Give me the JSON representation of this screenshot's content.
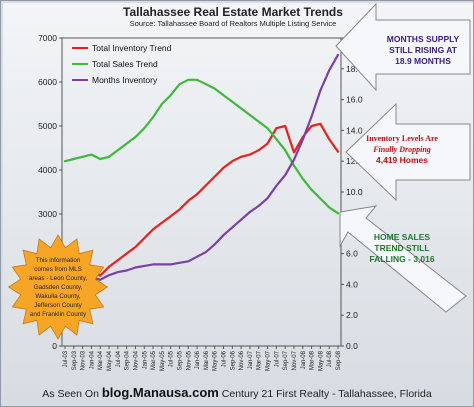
{
  "chart_data": {
    "type": "line",
    "title": "Tallahassee Real Estate Market Trends",
    "subtitle": "Source: Tallahassee Board of Realtors Multiple Listing Service",
    "x": [
      "Jul-03",
      "Sep-03",
      "Nov-03",
      "Jan-04",
      "Mar-04",
      "May-04",
      "Jul-04",
      "Sep-04",
      "Nov-04",
      "Jan-05",
      "Mar-05",
      "May-05",
      "Jul-05",
      "Sep-05",
      "Nov-05",
      "Jan-06",
      "Mar-06",
      "May-06",
      "Jul-06",
      "Sep-06",
      "Nov-06",
      "Jan-07",
      "Mar-07",
      "May-07",
      "Jul-07",
      "Sep-07",
      "Nov-07",
      "Jan-08",
      "Mar-08",
      "May-08",
      "Jul-08",
      "Sep-08"
    ],
    "y_left_lim": [
      0,
      7000
    ],
    "y_right_lim": [
      0.0,
      20.0
    ],
    "y_left_ticks": [
      0,
      1000,
      2000,
      3000,
      4000,
      5000,
      6000,
      7000
    ],
    "y_right_ticks": [
      "0.0",
      "2.0",
      "4.0",
      "6.0",
      "8.0",
      "10.0",
      "12.0",
      "14.0",
      "16.0",
      "18.0",
      "20.0"
    ],
    "series": [
      {
        "name": "Total Inventory Trend",
        "color": "#e8201c",
        "axis": "left",
        "values": [
          1300,
          1450,
          1550,
          1700,
          1600,
          1800,
          1950,
          2100,
          2250,
          2450,
          2650,
          2800,
          2950,
          3100,
          3300,
          3450,
          3650,
          3850,
          4050,
          4200,
          4300,
          4350,
          4450,
          4600,
          4950,
          5000,
          4400,
          4750,
          5000,
          5050,
          4700,
          4419
        ]
      },
      {
        "name": "Total Sales Trend",
        "color": "#3dba3a",
        "axis": "left",
        "values": [
          4200,
          4250,
          4300,
          4350,
          4250,
          4300,
          4450,
          4600,
          4750,
          4950,
          5200,
          5500,
          5700,
          5950,
          6050,
          6050,
          5950,
          5850,
          5700,
          5550,
          5400,
          5250,
          5100,
          4950,
          4700,
          4450,
          4100,
          3800,
          3550,
          3350,
          3150,
          3016
        ]
      },
      {
        "name": "Months Inventory",
        "color": "#7b3fa8",
        "axis": "right",
        "values": [
          4.2,
          4.3,
          4.4,
          4.5,
          4.3,
          4.6,
          4.8,
          4.9,
          5.1,
          5.2,
          5.3,
          5.3,
          5.3,
          5.4,
          5.5,
          5.8,
          6.1,
          6.6,
          7.2,
          7.7,
          8.2,
          8.7,
          9.1,
          9.6,
          10.4,
          11.1,
          12.1,
          13.4,
          14.9,
          16.6,
          17.9,
          18.9
        ]
      }
    ],
    "grid": false,
    "legend_position": "top-left"
  },
  "annotations": {
    "months_supply": [
      "MONTHS SUPPLY",
      "STILL RISING AT",
      "18.9 MONTHS"
    ],
    "inventory": [
      "Inventory Levels Are",
      "Finally Dropping",
      "4,419 Homes"
    ],
    "sales": [
      "HOME SALES",
      "TREND STILL",
      "FALLING - 3,016"
    ],
    "mls_note": [
      "This information",
      "comes from MLS",
      "areas - Leon County,",
      "Gadsden County,",
      "Wakulla County,",
      "Jefferson County",
      "and Franklin County"
    ]
  },
  "footer": {
    "prefix": "As Seen On",
    "site": "blog.Manausa.com",
    "suffix": "Century 21 First Realty - Tallahassee, Florida"
  },
  "colors": {
    "inventory": "#e8201c",
    "sales": "#3dba3a",
    "months": "#7b3fa8",
    "arrow_fill": "#f5f7fa",
    "starburst": "#f7a524"
  }
}
